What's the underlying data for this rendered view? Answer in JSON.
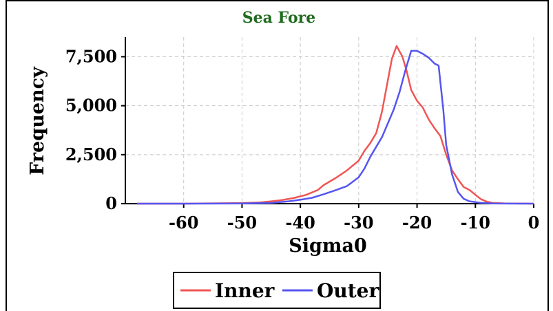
{
  "chart_data": {
    "type": "line",
    "title": "Sea Fore",
    "xlabel": "Sigma0",
    "ylabel": "Frequency",
    "xlim": [
      -70,
      0
    ],
    "ylim": [
      0,
      8500
    ],
    "xticks": [
      "-60",
      "-50",
      "-40",
      "-30",
      "-20",
      "-10",
      "0"
    ],
    "xtick_values": [
      -60,
      -50,
      -40,
      -30,
      -20,
      -10,
      0
    ],
    "yticks": [
      "0",
      "2,500",
      "5,000",
      "7,500"
    ],
    "ytick_values": [
      0,
      2500,
      5000,
      7500
    ],
    "grid": true,
    "legend_position": "bottom",
    "series": [
      {
        "name": "Inner",
        "color": "#f05555",
        "points": [
          [
            -68,
            0
          ],
          [
            -60,
            0
          ],
          [
            -50,
            30
          ],
          [
            -47,
            60
          ],
          [
            -45,
            120
          ],
          [
            -43,
            190
          ],
          [
            -41,
            300
          ],
          [
            -39,
            450
          ],
          [
            -37,
            700
          ],
          [
            -36,
            950
          ],
          [
            -34,
            1300
          ],
          [
            -32,
            1700
          ],
          [
            -30,
            2200
          ],
          [
            -29,
            2700
          ],
          [
            -28,
            3100
          ],
          [
            -27,
            3600
          ],
          [
            -26,
            4700
          ],
          [
            -25,
            6300
          ],
          [
            -24.3,
            7400
          ],
          [
            -23.5,
            8050
          ],
          [
            -22.5,
            7500
          ],
          [
            -21.8,
            6800
          ],
          [
            -21,
            5800
          ],
          [
            -20,
            5250
          ],
          [
            -19,
            4900
          ],
          [
            -18,
            4300
          ],
          [
            -17,
            3850
          ],
          [
            -16,
            3450
          ],
          [
            -15,
            2500
          ],
          [
            -14,
            1700
          ],
          [
            -13,
            1250
          ],
          [
            -12,
            850
          ],
          [
            -11,
            700
          ],
          [
            -10,
            450
          ],
          [
            -9,
            220
          ],
          [
            -8,
            100
          ],
          [
            -7,
            40
          ],
          [
            -5,
            15
          ],
          [
            0,
            0
          ]
        ]
      },
      {
        "name": "Outer",
        "color": "#5555f0",
        "points": [
          [
            -68,
            0
          ],
          [
            -60,
            0
          ],
          [
            -50,
            10
          ],
          [
            -45,
            40
          ],
          [
            -42,
            120
          ],
          [
            -40,
            200
          ],
          [
            -38,
            300
          ],
          [
            -36,
            480
          ],
          [
            -34,
            680
          ],
          [
            -32,
            900
          ],
          [
            -30,
            1350
          ],
          [
            -29,
            1800
          ],
          [
            -28,
            2400
          ],
          [
            -26,
            3400
          ],
          [
            -25,
            4100
          ],
          [
            -24,
            4800
          ],
          [
            -23,
            5700
          ],
          [
            -22,
            6800
          ],
          [
            -21,
            7800
          ],
          [
            -20,
            7800
          ],
          [
            -19,
            7650
          ],
          [
            -18,
            7450
          ],
          [
            -17,
            7150
          ],
          [
            -16.3,
            7050
          ],
          [
            -15.5,
            4800
          ],
          [
            -15,
            3000
          ],
          [
            -14,
            1500
          ],
          [
            -13,
            600
          ],
          [
            -12,
            250
          ],
          [
            -11,
            120
          ],
          [
            -9,
            40
          ],
          [
            -7,
            10
          ],
          [
            0,
            0
          ]
        ]
      }
    ]
  }
}
